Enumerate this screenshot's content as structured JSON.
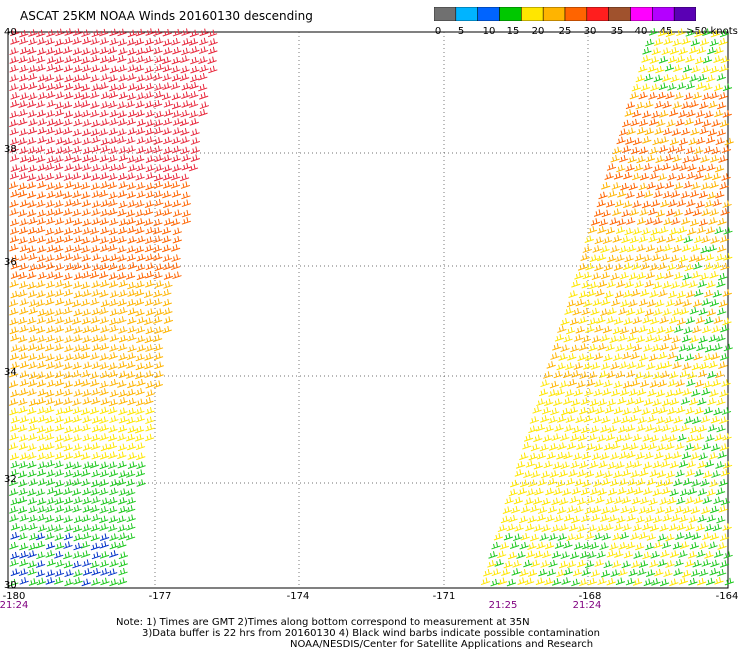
{
  "title": "ASCAT 25KM NOAA Winds 20160130 descending",
  "colorbar": {
    "colors": [
      "#707070",
      "#00b4ff",
      "#0064ff",
      "#00c800",
      "#ffe600",
      "#ffb400",
      "#ff6400",
      "#ff1e1e",
      "#a0522d",
      "#ff00ff",
      "#b400ff",
      "#5a00b4"
    ],
    "labels": [
      "0",
      "5",
      "10",
      "15",
      "20",
      "25",
      "30",
      "35",
      "40",
      "45",
      ">50 knots"
    ]
  },
  "map": {
    "lon_range": [
      -180,
      -164
    ],
    "lat_range": [
      30,
      40
    ],
    "lat_labels": [
      "40",
      "38",
      "36",
      "34",
      "32",
      "30"
    ],
    "lon_labels": [
      "-180",
      "-177",
      "-174",
      "-171",
      "-168",
      "-164"
    ],
    "time_labels": [
      "21:24",
      "21:25",
      "21:24"
    ]
  },
  "notes": {
    "line1": "Note: 1) Times are GMT 2)Times along bottom correspond to measurement at 35N",
    "line2": "3)Data buffer is 22 hrs from 20160130 4) Black wind barbs indicate possible contamination",
    "line3": "NOAA/NESDIS/Center for Satellite Applications and Research"
  }
}
